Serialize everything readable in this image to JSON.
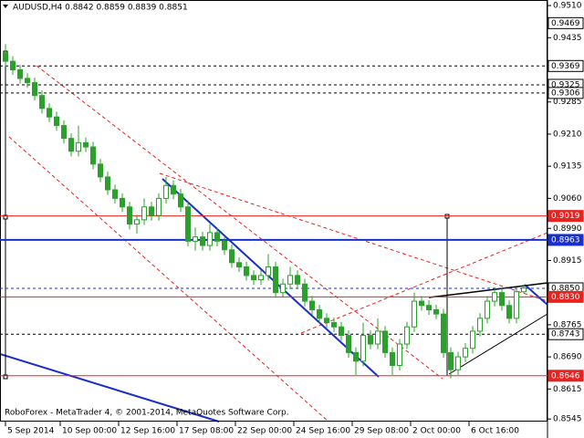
{
  "chart_data": {
    "type": "candlestick",
    "title": "AUDUSD,H4  0.8842 0.8859 0.8839 0.8851",
    "footer": "RoboForex - MetaTrader 4, © 2001-2014, MetaQuotes Software Corp.",
    "bull_color": "#ffffff",
    "bear_color": "#2ca02c",
    "wick_color": "#2ca02c",
    "ylim": [
      0.8539,
      0.9523
    ],
    "xlim": [
      -0.75,
      74.25
    ],
    "yticks": [
      {
        "value": 0.951,
        "label": "0.9510"
      },
      {
        "value": 0.9435,
        "label": "0.9435"
      },
      {
        "value": 0.9285,
        "label": "0.9285"
      },
      {
        "value": 0.921,
        "label": "0.9210"
      },
      {
        "value": 0.9135,
        "label": "0.9135"
      },
      {
        "value": 0.906,
        "label": "0.9060"
      },
      {
        "value": 0.899,
        "label": "0.8990"
      },
      {
        "value": 0.8915,
        "label": "0.8915"
      },
      {
        "value": 0.8765,
        "label": "0.8765"
      },
      {
        "value": 0.869,
        "label": "0.8690"
      },
      {
        "value": 0.8615,
        "label": "0.8615"
      },
      {
        "value": 0.8545,
        "label": "0.8545"
      }
    ],
    "xticks": [
      {
        "value": 0,
        "label": "5 Sep 2014"
      },
      {
        "value": 7.5,
        "label": "10 Sep 00:00"
      },
      {
        "value": 15.5,
        "label": "12 Sep 16:00"
      },
      {
        "value": 23.5,
        "label": "17 Sep 08:00"
      },
      {
        "value": 31.5,
        "label": "22 Sep 00:00"
      },
      {
        "value": 39.5,
        "label": "24 Sep 16:00"
      },
      {
        "value": 47.5,
        "label": "29 Sep 08:00"
      },
      {
        "value": 55.5,
        "label": "2 Oct 00:00"
      },
      {
        "value": 63.5,
        "label": "6 Oct 16:00"
      }
    ],
    "levels": [
      {
        "value": 0.9469,
        "label": "0.9469",
        "color": "#ffffff",
        "line": "none"
      },
      {
        "value": 0.9369,
        "label": "0.9369",
        "color": "#ffffff",
        "line": "#000000"
      },
      {
        "value": 0.9325,
        "label": "0.9325",
        "color": "#ffffff",
        "line": "#000000"
      },
      {
        "value": 0.9306,
        "label": "0.9306",
        "color": "#ffffff",
        "line": "#000000"
      },
      {
        "value": 0.9019,
        "label": "0.9019",
        "color": "#e8231f",
        "line": "#e8231f"
      },
      {
        "value": 0.8963,
        "label": "0.8963",
        "color": "#1a2fc8",
        "line": "#1a2fc8"
      },
      {
        "value": 0.885,
        "label": "0.8850",
        "color": "#ffffff",
        "line": "#1a2fc8"
      },
      {
        "value": 0.883,
        "label": "0.8830",
        "color": "#e8231f",
        "line": "#e8231f"
      },
      {
        "value": 0.8743,
        "label": "0.8743",
        "color": "#ffffff",
        "line": "#000000"
      },
      {
        "value": 0.8646,
        "label": "0.8646",
        "color": "#e8231f",
        "line": "#e8231f"
      }
    ],
    "candles": [
      [
        0.94,
        0.942,
        0.9368,
        0.938
      ],
      [
        0.938,
        0.9392,
        0.9348,
        0.936
      ],
      [
        0.936,
        0.9372,
        0.9328,
        0.934
      ],
      [
        0.934,
        0.9352,
        0.9318,
        0.933
      ],
      [
        0.933,
        0.9342,
        0.9288,
        0.93
      ],
      [
        0.93,
        0.9312,
        0.9258,
        0.927
      ],
      [
        0.927,
        0.9282,
        0.9238,
        0.925
      ],
      [
        0.925,
        0.9262,
        0.9218,
        0.923
      ],
      [
        0.923,
        0.9242,
        0.9188,
        0.92
      ],
      [
        0.92,
        0.9212,
        0.9158,
        0.917
      ],
      [
        0.917,
        0.923,
        0.9158,
        0.919
      ],
      [
        0.919,
        0.9202,
        0.9168,
        0.918
      ],
      [
        0.918,
        0.9192,
        0.9128,
        0.914
      ],
      [
        0.914,
        0.9152,
        0.9098,
        0.911
      ],
      [
        0.911,
        0.9122,
        0.9068,
        0.908
      ],
      [
        0.908,
        0.9092,
        0.9048,
        0.906
      ],
      [
        0.906,
        0.9072,
        0.9028,
        0.904
      ],
      [
        0.904,
        0.9052,
        0.8988,
        0.9
      ],
      [
        0.9,
        0.9022,
        0.8978,
        0.901
      ],
      [
        0.901,
        0.906,
        0.8998,
        0.904
      ],
      [
        0.904,
        0.9052,
        0.9008,
        0.902
      ],
      [
        0.902,
        0.9072,
        0.9008,
        0.906
      ],
      [
        0.906,
        0.911,
        0.9048,
        0.909
      ],
      [
        0.909,
        0.9102,
        0.9058,
        0.907
      ],
      [
        0.907,
        0.9082,
        0.9028,
        0.904
      ],
      [
        0.904,
        0.9052,
        0.8948,
        0.896
      ],
      [
        0.896,
        0.8992,
        0.8938,
        0.897
      ],
      [
        0.897,
        0.8982,
        0.8938,
        0.895
      ],
      [
        0.895,
        0.9,
        0.8938,
        0.898
      ],
      [
        0.898,
        0.8992,
        0.8948,
        0.896
      ],
      [
        0.896,
        0.8972,
        0.8928,
        0.894
      ],
      [
        0.894,
        0.8952,
        0.8898,
        0.891
      ],
      [
        0.891,
        0.8922,
        0.8888,
        0.89
      ],
      [
        0.89,
        0.8912,
        0.8868,
        0.888
      ],
      [
        0.888,
        0.8892,
        0.8858,
        0.887
      ],
      [
        0.887,
        0.8892,
        0.8858,
        0.888
      ],
      [
        0.888,
        0.893,
        0.8868,
        0.89
      ],
      [
        0.89,
        0.8912,
        0.8828,
        0.884
      ],
      [
        0.884,
        0.8872,
        0.8828,
        0.886
      ],
      [
        0.886,
        0.89,
        0.8848,
        0.888
      ],
      [
        0.888,
        0.8892,
        0.8848,
        0.886
      ],
      [
        0.886,
        0.8872,
        0.8808,
        0.882
      ],
      [
        0.882,
        0.8832,
        0.8788,
        0.88
      ],
      [
        0.88,
        0.8812,
        0.8768,
        0.878
      ],
      [
        0.878,
        0.8792,
        0.8758,
        0.877
      ],
      [
        0.877,
        0.8782,
        0.8748,
        0.876
      ],
      [
        0.876,
        0.8772,
        0.8728,
        0.874
      ],
      [
        0.874,
        0.8752,
        0.8688,
        0.87
      ],
      [
        0.87,
        0.8712,
        0.8648,
        0.868
      ],
      [
        0.868,
        0.877,
        0.8668,
        0.874
      ],
      [
        0.874,
        0.8752,
        0.8708,
        0.872
      ],
      [
        0.872,
        0.878,
        0.8708,
        0.875
      ],
      [
        0.875,
        0.8762,
        0.8688,
        0.87
      ],
      [
        0.87,
        0.8712,
        0.8648,
        0.867
      ],
      [
        0.867,
        0.8732,
        0.8658,
        0.872
      ],
      [
        0.872,
        0.8772,
        0.8708,
        0.876
      ],
      [
        0.876,
        0.884,
        0.8748,
        0.882
      ],
      [
        0.882,
        0.8832,
        0.8798,
        0.881
      ],
      [
        0.881,
        0.8822,
        0.8788,
        0.88
      ],
      [
        0.88,
        0.8812,
        0.8778,
        0.879
      ],
      [
        0.879,
        0.8802,
        0.8688,
        0.87
      ],
      [
        0.87,
        0.8712,
        0.864,
        0.866
      ],
      [
        0.866,
        0.8702,
        0.8648,
        0.869
      ],
      [
        0.869,
        0.8722,
        0.8678,
        0.871
      ],
      [
        0.871,
        0.8762,
        0.8698,
        0.875
      ],
      [
        0.875,
        0.8792,
        0.8738,
        0.878
      ],
      [
        0.878,
        0.8832,
        0.8768,
        0.882
      ],
      [
        0.882,
        0.8852,
        0.8808,
        0.884
      ],
      [
        0.884,
        0.8852,
        0.8798,
        0.881
      ],
      [
        0.881,
        0.8822,
        0.8768,
        0.878
      ],
      [
        0.878,
        0.885,
        0.8768,
        0.8842
      ],
      [
        0.8842,
        0.8859,
        0.8839,
        0.8851
      ]
    ]
  }
}
